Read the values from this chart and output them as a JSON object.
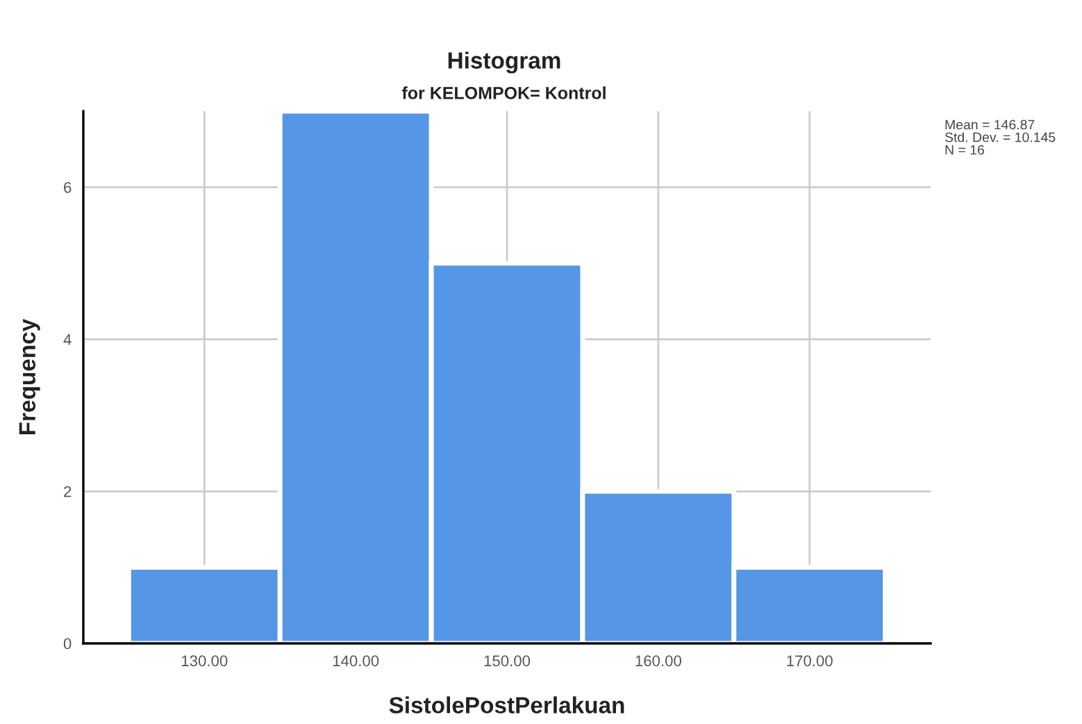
{
  "chart_data": {
    "type": "histogram",
    "title": "Histogram",
    "subtitle": "for KELOMPOK= Kontrol",
    "xlabel": "SistolePostPerlakuan",
    "ylabel": "Frequency",
    "bins": [
      125,
      135,
      145,
      155,
      165,
      175
    ],
    "values": [
      1,
      7,
      5,
      2,
      1
    ],
    "color": "#5596e6",
    "xlim": [
      122,
      178
    ],
    "ylim": [
      0,
      7
    ],
    "xticks": [
      {
        "value": 130,
        "label": "130.00"
      },
      {
        "value": 140,
        "label": "140.00"
      },
      {
        "value": 150,
        "label": "150.00"
      },
      {
        "value": 160,
        "label": "160.00"
      },
      {
        "value": 170,
        "label": "170.00"
      }
    ],
    "yticks": [
      0,
      2,
      4,
      6
    ],
    "grid": true,
    "legend": false,
    "annotations": [
      "Mean = 146.87\nStd. Dev. = 10.145\nN = 16"
    ]
  }
}
